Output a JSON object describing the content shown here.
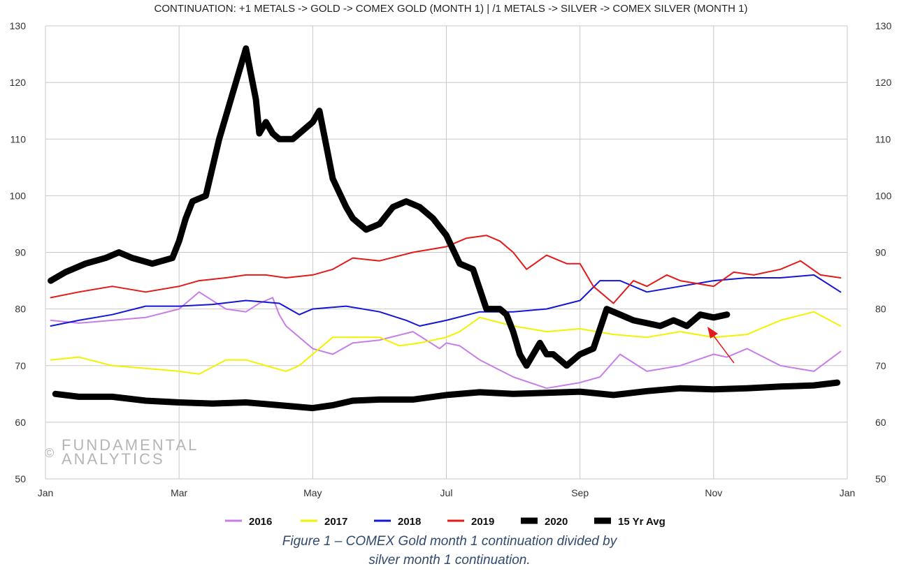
{
  "chart_data": {
    "type": "line",
    "title": "CONTINUATION: +1 METALS -> GOLD -> COMEX GOLD (MONTH 1) | /1 METALS -> SILVER -> COMEX SILVER (MONTH 1)",
    "xlabel": "",
    "ylabel": "",
    "x_ticks": [
      "Jan",
      "Mar",
      "May",
      "Jul",
      "Sep",
      "Nov",
      "Jan"
    ],
    "x_domain": [
      0,
      12
    ],
    "ylim": [
      50,
      130
    ],
    "y_ticks": [
      50,
      60,
      70,
      80,
      90,
      100,
      110,
      120,
      130
    ],
    "grid": true,
    "legend_position": "bottom",
    "series": [
      {
        "name": "2016",
        "color": "#c77de8",
        "width": 2,
        "x": [
          0.08,
          0.5,
          1.0,
          1.5,
          2.0,
          2.3,
          2.7,
          3.0,
          3.2,
          3.4,
          3.5,
          3.6,
          3.8,
          4.0,
          4.3,
          4.6,
          5.0,
          5.5,
          5.9,
          6.0,
          6.2,
          6.5,
          7.0,
          7.5,
          8.0,
          8.3,
          8.6,
          9.0,
          9.5,
          10.0,
          10.2,
          10.5,
          11.0,
          11.5,
          11.9
        ],
        "y": [
          78,
          77.5,
          78,
          78.5,
          80,
          83,
          80,
          79.5,
          81,
          82,
          79,
          77,
          75,
          73,
          72,
          74,
          74.5,
          76,
          73,
          74,
          73.5,
          71,
          68,
          66,
          67,
          68,
          72,
          69,
          70,
          72,
          71.5,
          73,
          70,
          69,
          72.5
        ]
      },
      {
        "name": "2017",
        "color": "#f2f200",
        "width": 2,
        "x": [
          0.08,
          0.5,
          1.0,
          1.5,
          2.0,
          2.3,
          2.7,
          3.0,
          3.3,
          3.6,
          3.8,
          4.0,
          4.3,
          4.6,
          5.0,
          5.3,
          5.6,
          6.0,
          6.2,
          6.5,
          7.0,
          7.5,
          8.0,
          8.5,
          9.0,
          9.5,
          10.0,
          10.5,
          11.0,
          11.5,
          11.9
        ],
        "y": [
          71,
          71.5,
          70,
          69.5,
          69,
          68.5,
          71,
          71,
          70,
          69,
          70,
          72,
          75,
          75,
          75,
          73.5,
          74,
          75,
          76,
          78.5,
          77,
          76,
          76.5,
          75.5,
          75,
          76,
          75,
          75.5,
          78,
          79.5,
          77
        ]
      },
      {
        "name": "2018",
        "color": "#1515d6",
        "width": 2,
        "x": [
          0.08,
          0.5,
          1.0,
          1.5,
          2.0,
          2.5,
          3.0,
          3.5,
          3.8,
          4.0,
          4.5,
          5.0,
          5.4,
          5.6,
          6.0,
          6.5,
          7.0,
          7.5,
          8.0,
          8.3,
          8.6,
          9.0,
          9.5,
          10.0,
          10.5,
          11.0,
          11.5,
          11.9
        ],
        "y": [
          77,
          78,
          79,
          80.5,
          80.5,
          80.8,
          81.5,
          81,
          79,
          80,
          80.5,
          79.5,
          78,
          77,
          78,
          79.5,
          79.5,
          80,
          81.5,
          85,
          85,
          83,
          84,
          85,
          85.5,
          85.5,
          86,
          83
        ]
      },
      {
        "name": "2019",
        "color": "#e31a1a",
        "width": 2,
        "x": [
          0.08,
          0.5,
          1.0,
          1.5,
          2.0,
          2.3,
          2.7,
          3.0,
          3.3,
          3.6,
          4.0,
          4.3,
          4.6,
          5.0,
          5.5,
          6.0,
          6.3,
          6.6,
          6.8,
          7.0,
          7.2,
          7.5,
          7.8,
          8.0,
          8.2,
          8.5,
          8.8,
          9.0,
          9.3,
          9.5,
          10.0,
          10.3,
          10.6,
          11.0,
          11.3,
          11.6,
          11.9
        ],
        "y": [
          82,
          83,
          84,
          83,
          84,
          85,
          85.5,
          86,
          86,
          85.5,
          86,
          87,
          89,
          88.5,
          90,
          91,
          92.5,
          93,
          92,
          90,
          87,
          89.5,
          88,
          88,
          84,
          81,
          85,
          84,
          86,
          85,
          84,
          86.5,
          86,
          87,
          88.5,
          86,
          85.5
        ]
      },
      {
        "name": "2020",
        "color": "#000000",
        "width": 9,
        "x": [
          0.08,
          0.3,
          0.6,
          0.9,
          1.1,
          1.3,
          1.6,
          1.9,
          2.0,
          2.1,
          2.2,
          2.4,
          2.6,
          2.8,
          3.0,
          3.05,
          3.1,
          3.15,
          3.2,
          3.3,
          3.4,
          3.5,
          3.7,
          4.0,
          4.1,
          4.2,
          4.3,
          4.5,
          4.6,
          4.8,
          5.0,
          5.2,
          5.4,
          5.5,
          5.6,
          5.8,
          6.0,
          6.2,
          6.4,
          6.6,
          6.8,
          6.9,
          7.0,
          7.1,
          7.2,
          7.3,
          7.4,
          7.5,
          7.6,
          7.7,
          7.8,
          8.0,
          8.2,
          8.4,
          8.6,
          8.8,
          9.0,
          9.2,
          9.4,
          9.6,
          9.8,
          10.0,
          10.2
        ],
        "y": [
          85,
          86.5,
          88,
          89,
          90,
          89,
          88,
          89,
          92,
          96,
          99,
          100,
          110,
          118,
          126,
          123,
          120,
          117,
          111,
          113,
          111,
          110,
          110,
          113,
          115,
          109,
          103,
          98,
          96,
          94,
          95,
          98,
          99,
          98.5,
          98,
          96,
          93,
          88,
          87,
          80,
          80,
          79,
          76,
          72,
          70,
          72,
          74,
          72,
          72,
          71,
          70,
          72,
          73,
          80,
          79,
          78,
          77.5,
          77,
          78,
          77,
          79,
          78.5,
          79
        ]
      },
      {
        "name": "15 Yr Avg",
        "color": "#000000",
        "width": 9,
        "x": [
          0.15,
          0.5,
          1.0,
          1.5,
          2.0,
          2.5,
          3.0,
          3.5,
          4.0,
          4.3,
          4.6,
          5.0,
          5.5,
          6.0,
          6.5,
          7.0,
          7.5,
          8.0,
          8.5,
          9.0,
          9.5,
          10.0,
          10.5,
          11.0,
          11.5,
          11.85
        ],
        "y": [
          65,
          64.5,
          64.5,
          63.8,
          63.5,
          63.3,
          63.5,
          63,
          62.5,
          63,
          63.8,
          64,
          64,
          64.8,
          65.3,
          65,
          65.2,
          65.4,
          64.8,
          65.5,
          66,
          65.8,
          66,
          66.3,
          66.5,
          67
        ]
      }
    ],
    "legend": [
      {
        "label": "2016",
        "color": "#c77de8",
        "width": 3
      },
      {
        "label": "2017",
        "color": "#f2f200",
        "width": 3
      },
      {
        "label": "2018",
        "color": "#1515d6",
        "width": 3
      },
      {
        "label": "2019",
        "color": "#e31a1a",
        "width": 3
      },
      {
        "label": "2020",
        "color": "#000000",
        "width": 9
      },
      {
        "label": "15 Yr Avg",
        "color": "#000000",
        "width": 9
      }
    ]
  },
  "watermark": {
    "symbol": "©",
    "line1": "FUNDAMENTAL",
    "line2": "ANALYTICS"
  },
  "caption": {
    "line1": "Figure 1 – COMEX Gold month 1 continuation divided by",
    "line2": "silver month 1 continuation."
  }
}
